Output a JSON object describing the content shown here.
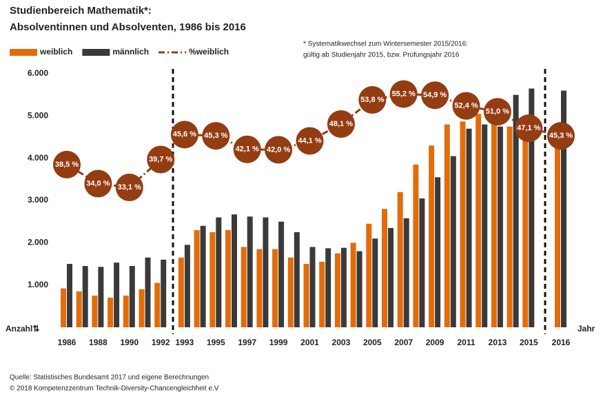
{
  "chart_data": {
    "type": "bar",
    "title": "Studienbereich Mathematik*:",
    "subtitle": "Absolventinnen und Absolventen, 1986 bis 2016",
    "annotations": [
      "* Systematikwechsel zum Wintersemester 2015/2016:",
      "gültig ab Studienjahr 2015, bzw. Prüfungsjahr 2016"
    ],
    "sources": [
      "Quelle: Statistisches Bundesamt 2017 und eigene Berechnungen",
      "© 2018 Kompetenzzentrum Technik-Diversity-Chancengleichheit e.V"
    ],
    "y_label": "Anzahl⇅",
    "x_label": "Jahr",
    "categories": [
      "1986",
      null,
      "1988",
      null,
      "1990",
      null,
      "1992",
      "1993",
      null,
      "1995",
      null,
      "1997",
      null,
      "1999",
      null,
      "2001",
      null,
      "2003",
      null,
      "2005",
      null,
      "2007",
      null,
      "2009",
      null,
      "2011",
      null,
      "2013",
      null,
      "2015",
      "2016"
    ],
    "series": [
      {
        "name": "weiblich",
        "color": "#e36c0a",
        "values": [
          920,
          850,
          750,
          700,
          750,
          900,
          1050,
          1650,
          2300,
          2250,
          2300,
          1900,
          1850,
          1850,
          1650,
          1500,
          1550,
          1750,
          2000,
          2450,
          2800,
          3200,
          3850,
          4300,
          4800,
          4870,
          5050,
          4900,
          4750,
          4600,
          4500
        ]
      },
      {
        "name": "männlich",
        "color": "#3a3a3a",
        "values": [
          1500,
          1450,
          1430,
          1530,
          1450,
          1650,
          1600,
          1950,
          2400,
          2600,
          2670,
          2620,
          2600,
          2500,
          2250,
          1900,
          1870,
          1880,
          1800,
          2100,
          2350,
          2580,
          3050,
          3550,
          4050,
          4700,
          4800,
          4750,
          5500,
          5650,
          5600
        ]
      },
      {
        "name": "%weiblich",
        "color": "#943c12",
        "type": "line",
        "axis": "y2",
        "x": [
          "1986",
          "1988",
          "1990",
          "1992",
          "1993",
          "1995",
          "1997",
          "1999",
          "2001",
          "2003",
          "2005",
          "2007",
          "2009",
          "2011",
          "2013",
          "2015",
          "2016"
        ],
        "values": [
          38.5,
          34.0,
          33.1,
          39.7,
          45.6,
          45.3,
          42.1,
          42.0,
          44.1,
          48.1,
          53.8,
          55.2,
          54.9,
          52.4,
          51.0,
          47.1,
          45.3
        ],
        "value_labels": [
          "38,5 %",
          "34,0 %",
          "33,1 %",
          "39,7 %",
          "45,6 %",
          "45,3 %",
          "42,1 %",
          "42,0 %",
          "44,1 %",
          "48,1 %",
          "53,8 %",
          "55,2 %",
          "54,9 %",
          "52,4 %",
          "51,0 %",
          "47,1 %",
          "45,3 %"
        ]
      }
    ],
    "ylim": [
      0,
      6000
    ],
    "yticks": [
      {
        "value": 1000,
        "label": "1.000"
      },
      {
        "value": 2000,
        "label": "2.000"
      },
      {
        "value": 3000,
        "label": "3.000"
      },
      {
        "value": 4000,
        "label": "4.000"
      },
      {
        "value": 5000,
        "label": "5.000"
      },
      {
        "value": 6000,
        "label": "6.000"
      }
    ],
    "y2lim": [
      0,
      60
    ],
    "grid": false
  }
}
